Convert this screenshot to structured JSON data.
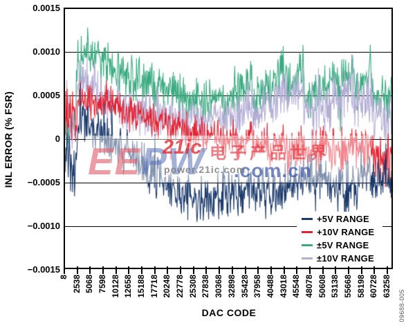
{
  "figure": {
    "figure_number": "09688-005"
  },
  "watermark": {
    "brand_left": "EE",
    "brand_right": "PW",
    "brand_domain": ".com.cn",
    "site_tag": "21ic",
    "site_name": "电子产品世界",
    "site_url": "power.21ic.com"
  },
  "chart_data": {
    "type": "line",
    "title": "",
    "xlabel": "DAC CODE",
    "ylabel": "INL ERROR (% FSR)",
    "xlim": [
      8,
      64478
    ],
    "ylim": [
      -0.0015,
      0.0015
    ],
    "x_ticks": [
      8,
      2538,
      5068,
      7598,
      10128,
      12658,
      15188,
      17718,
      20248,
      22778,
      25308,
      27838,
      30368,
      32898,
      35428,
      37958,
      40488,
      43018,
      45548,
      48078,
      50608,
      53138,
      55668,
      58198,
      60728,
      63258
    ],
    "y_ticks": [
      0.0015,
      0.001,
      0.0005,
      0,
      -0.0005,
      -0.001,
      -0.0015
    ],
    "y_tick_labels": [
      "0.0015",
      "0.0010",
      "0.0005",
      "0",
      "−0.0005",
      "−0.0010",
      "−0.0015"
    ],
    "grid": true,
    "legend_position": "lower right",
    "data_representation": "Dense code-by-code INL noise traces; each series sampled as [dac_code, inl_mid_pct_fsr, noise_half_width_pct_fsr] envelope control points.",
    "draw_order": [
      2,
      3,
      1,
      0
    ],
    "series": [
      {
        "name": "+5V RANGE",
        "color": "#1b3a6b",
        "points": [
          [
            8,
            -0.00025,
            0.00032
          ],
          [
            2300,
            -0.00028,
            0.00032
          ],
          [
            2600,
            0.00022,
            0.00022
          ],
          [
            4300,
            0.00018,
            0.0002
          ],
          [
            6300,
            0.0001,
            0.0002
          ],
          [
            9000,
            -2e-05,
            0.0002
          ],
          [
            11700,
            -0.00012,
            0.0002
          ],
          [
            14400,
            -0.00025,
            0.0002
          ],
          [
            17000,
            -0.00035,
            0.0002
          ],
          [
            19700,
            -0.00048,
            0.0002
          ],
          [
            22400,
            -0.0006,
            0.00022
          ],
          [
            25000,
            -0.00068,
            0.00022
          ],
          [
            28000,
            -0.00072,
            0.00022
          ],
          [
            30400,
            -0.0007,
            0.00022
          ],
          [
            33400,
            -0.00062,
            0.00022
          ],
          [
            36700,
            -0.00055,
            0.0002
          ],
          [
            40000,
            -0.0006,
            0.00022
          ],
          [
            41500,
            -0.00065,
            0.00022
          ],
          [
            43400,
            -0.00055,
            0.0002
          ],
          [
            46800,
            -0.00045,
            0.0002
          ],
          [
            50100,
            -0.00042,
            0.0002
          ],
          [
            53400,
            -0.00048,
            0.00022
          ],
          [
            55800,
            -0.00055,
            0.00024
          ],
          [
            58500,
            -0.00045,
            0.0002
          ],
          [
            60000,
            -0.00045,
            0.0002
          ],
          [
            64470,
            -0.0005,
            0.0002
          ]
        ]
      },
      {
        "name": "+10V RANGE",
        "color": "#e8202e",
        "points": [
          [
            8,
            0.00025,
            0.00026
          ],
          [
            2300,
            0.00022,
            0.00026
          ],
          [
            2600,
            0.00048,
            0.00016
          ],
          [
            4300,
            0.00045,
            0.00016
          ],
          [
            6300,
            0.00042,
            0.00016
          ],
          [
            9000,
            0.00038,
            0.00016
          ],
          [
            11700,
            0.00032,
            0.00016
          ],
          [
            14400,
            0.00028,
            0.00016
          ],
          [
            17000,
            0.00022,
            0.00016
          ],
          [
            19700,
            0.00018,
            0.00016
          ],
          [
            22400,
            0.00012,
            0.00016
          ],
          [
            25000,
            8e-05,
            0.00016
          ],
          [
            28000,
            3e-05,
            0.00016
          ],
          [
            30400,
            0.0001,
            0.00016
          ],
          [
            30700,
            -5e-05,
            0.00016
          ],
          [
            33400,
            8e-05,
            0.00016
          ],
          [
            33700,
            -0.0001,
            0.00016
          ],
          [
            36700,
            5e-05,
            0.00016
          ],
          [
            37000,
            -0.00012,
            0.00016
          ],
          [
            40000,
            0.0,
            0.00016
          ],
          [
            40300,
            -0.00015,
            0.00016
          ],
          [
            43400,
            -2e-05,
            0.00018
          ],
          [
            43700,
            -0.00018,
            0.00018
          ],
          [
            46800,
            -5e-05,
            0.00018
          ],
          [
            47100,
            -0.0002,
            0.00018
          ],
          [
            50100,
            -8e-05,
            0.0002
          ],
          [
            53400,
            -0.0001,
            0.0002
          ],
          [
            56700,
            -0.00012,
            0.00022
          ],
          [
            60000,
            -0.00015,
            0.00024
          ],
          [
            63258,
            -0.00022,
            0.00026
          ],
          [
            64470,
            -0.00028,
            0.00028
          ]
        ]
      },
      {
        "name": "±5V RANGE",
        "color": "#3aab80",
        "points": [
          [
            8,
            0.0002,
            0.00018
          ],
          [
            2200,
            0.0002,
            0.00018
          ],
          [
            2600,
            0.0009,
            0.00022
          ],
          [
            4300,
            0.00102,
            0.00022
          ],
          [
            6300,
            0.00095,
            0.00022
          ],
          [
            9000,
            0.00085,
            0.00022
          ],
          [
            11700,
            0.00075,
            0.00022
          ],
          [
            14400,
            0.00065,
            0.00022
          ],
          [
            17000,
            0.0006,
            0.0002
          ],
          [
            19700,
            0.00055,
            0.0002
          ],
          [
            22400,
            0.00052,
            0.0002
          ],
          [
            25000,
            0.0005,
            0.0002
          ],
          [
            28000,
            0.0004,
            0.0002
          ],
          [
            30400,
            0.00055,
            0.0002
          ],
          [
            30700,
            0.00035,
            0.0002
          ],
          [
            33400,
            0.0006,
            0.0002
          ],
          [
            33700,
            0.0005,
            0.0002
          ],
          [
            36700,
            0.00075,
            0.0002
          ],
          [
            37000,
            0.00045,
            0.0002
          ],
          [
            40000,
            0.0007,
            0.0002
          ],
          [
            40300,
            0.0006,
            0.0002
          ],
          [
            43400,
            0.00085,
            0.00022
          ],
          [
            43700,
            0.0006,
            0.00022
          ],
          [
            46800,
            0.0009,
            0.00022
          ],
          [
            47100,
            0.0004,
            0.0002
          ],
          [
            50100,
            0.00065,
            0.0002
          ],
          [
            50400,
            0.0005,
            0.0002
          ],
          [
            53400,
            0.00075,
            0.00022
          ],
          [
            53700,
            0.0006,
            0.00022
          ],
          [
            56700,
            0.00085,
            0.00022
          ],
          [
            57000,
            0.0005,
            0.0002
          ],
          [
            60000,
            0.0008,
            0.0002
          ],
          [
            60300,
            0.00045,
            0.0002
          ],
          [
            64470,
            0.00055,
            0.0002
          ]
        ]
      },
      {
        "name": "±10V RANGE",
        "color": "#b4aed5",
        "points": [
          [
            8,
            0.0002,
            0.00028
          ],
          [
            2300,
            0.00018,
            0.00028
          ],
          [
            2600,
            0.0007,
            0.00024
          ],
          [
            4300,
            0.00062,
            0.00024
          ],
          [
            6300,
            0.00055,
            0.00024
          ],
          [
            9000,
            0.00045,
            0.00022
          ],
          [
            11700,
            0.00038,
            0.00022
          ],
          [
            14400,
            0.00032,
            0.0002
          ],
          [
            17000,
            0.00028,
            0.0002
          ],
          [
            19700,
            0.00025,
            0.0002
          ],
          [
            22400,
            0.00022,
            0.0002
          ],
          [
            25000,
            0.0002,
            0.0002
          ],
          [
            28000,
            0.00018,
            0.0002
          ],
          [
            30400,
            0.0003,
            0.0002
          ],
          [
            30700,
            0.00015,
            0.0002
          ],
          [
            33400,
            0.00035,
            0.0002
          ],
          [
            33700,
            0.0002,
            0.0002
          ],
          [
            36700,
            0.00045,
            0.00022
          ],
          [
            37000,
            0.00025,
            0.00022
          ],
          [
            40000,
            0.0005,
            0.00024
          ],
          [
            40300,
            0.0003,
            0.00024
          ],
          [
            43400,
            0.00058,
            0.00026
          ],
          [
            43700,
            0.00035,
            0.00026
          ],
          [
            46800,
            0.00065,
            0.00028
          ],
          [
            47100,
            0.0003,
            0.00026
          ],
          [
            50100,
            0.00045,
            0.00028
          ],
          [
            50400,
            0.00035,
            0.00028
          ],
          [
            53400,
            0.00055,
            0.00028
          ],
          [
            53700,
            0.0004,
            0.00028
          ],
          [
            56700,
            0.00065,
            0.00028
          ],
          [
            57000,
            0.00035,
            0.00028
          ],
          [
            60000,
            0.00055,
            0.00028
          ],
          [
            60300,
            0.0003,
            0.00026
          ],
          [
            64470,
            0.0002,
            0.00028
          ]
        ]
      }
    ]
  }
}
